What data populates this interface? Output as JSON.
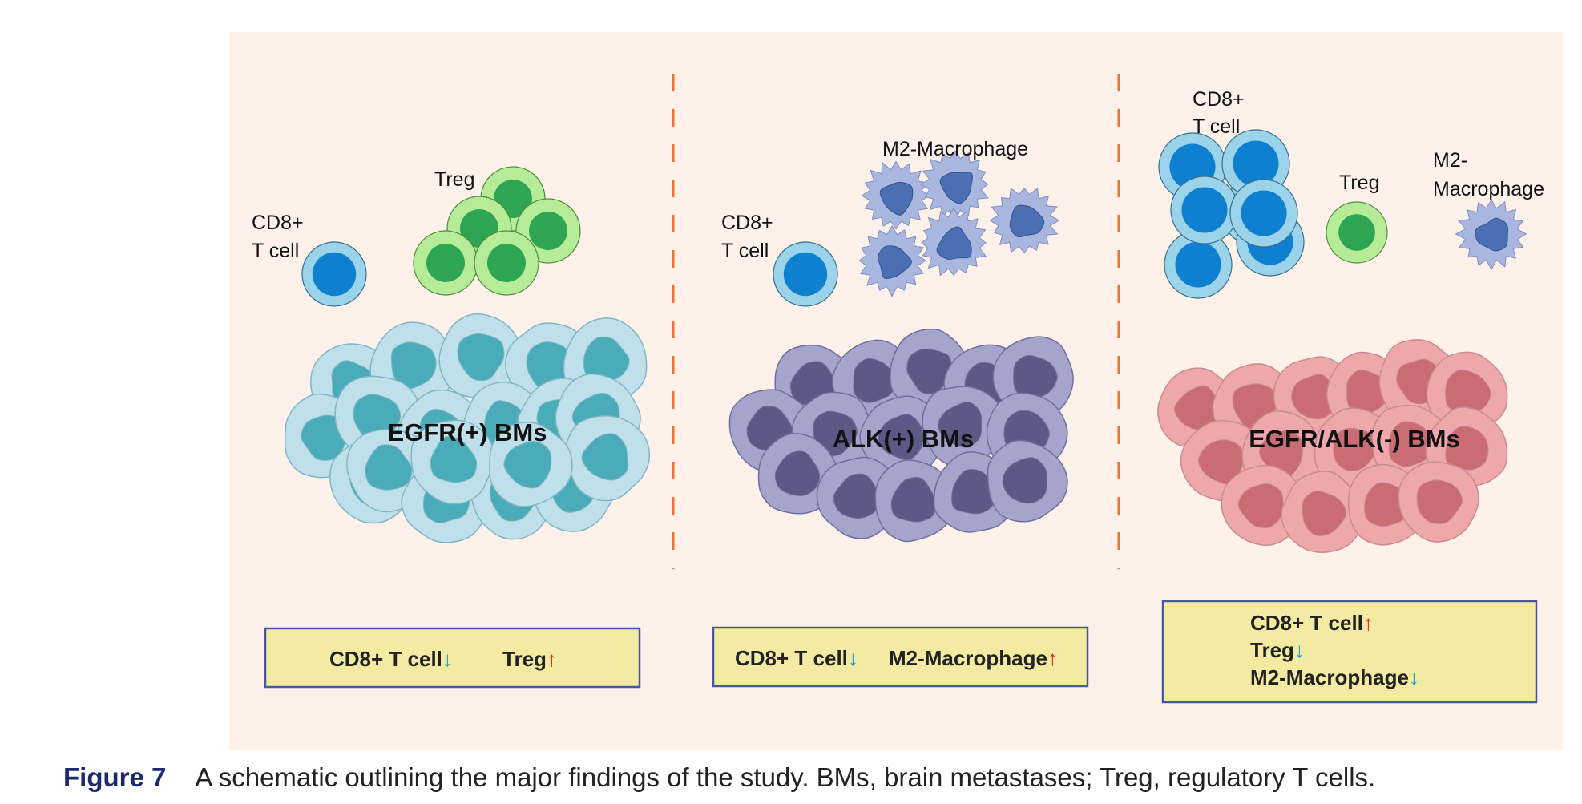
{
  "colors": {
    "panel_bg": "#fdf1ea",
    "divider": "#e8752f",
    "box_fill": "#f4eba3",
    "box_stroke": "#46599e",
    "arrow_up": "#e8231f",
    "arrow_down": "#1a9ed8",
    "cd8_outer": "#9bd4ea",
    "cd8_inner": "#0f7fd0",
    "treg_outer": "#b6ec98",
    "treg_inner": "#2da552",
    "macro_outer": "#a9b7e0",
    "macro_inner": "#4a6fb3",
    "egfr_outer": "#bfe0ea",
    "egfr_inner": "#4aacb8",
    "alk_outer": "#a4a4cc",
    "alk_inner": "#5a5a86",
    "neg_outer": "#eea8ac",
    "neg_inner": "#c96c74"
  },
  "panels": [
    {
      "tumor_label": "EGFR(+) BMs",
      "cd8_label": [
        "CD8+",
        "T cell"
      ],
      "treg_label": "Treg",
      "summary": [
        {
          "text": "CD8+ T cell",
          "arrow": "↓"
        },
        {
          "text": "Treg",
          "arrow": "↑"
        }
      ]
    },
    {
      "tumor_label": "ALK(+) BMs",
      "cd8_label": [
        "CD8+",
        "T cell"
      ],
      "macro_label": "M2-Macrophage",
      "summary": [
        {
          "text": "CD8+ T cell",
          "arrow": "↓"
        },
        {
          "text": "M2-Macrophage",
          "arrow": "↑"
        }
      ]
    },
    {
      "tumor_label": "EGFR/ALK(-) BMs",
      "cd8_label": [
        "CD8+",
        "T cell"
      ],
      "treg_label": "Treg",
      "macro_label": [
        "M2-",
        "Macrophage"
      ],
      "summary": [
        {
          "text": "CD8+ T cell",
          "arrow": "↑"
        },
        {
          "text": "Treg",
          "arrow": "↓"
        },
        {
          "text": "M2-Macrophage",
          "arrow": "↓"
        }
      ]
    }
  ],
  "caption": {
    "number": "Figure 7",
    "text": "A schematic outlining the major findings of the study. BMs, brain metastases; Treg, regulatory T cells."
  }
}
